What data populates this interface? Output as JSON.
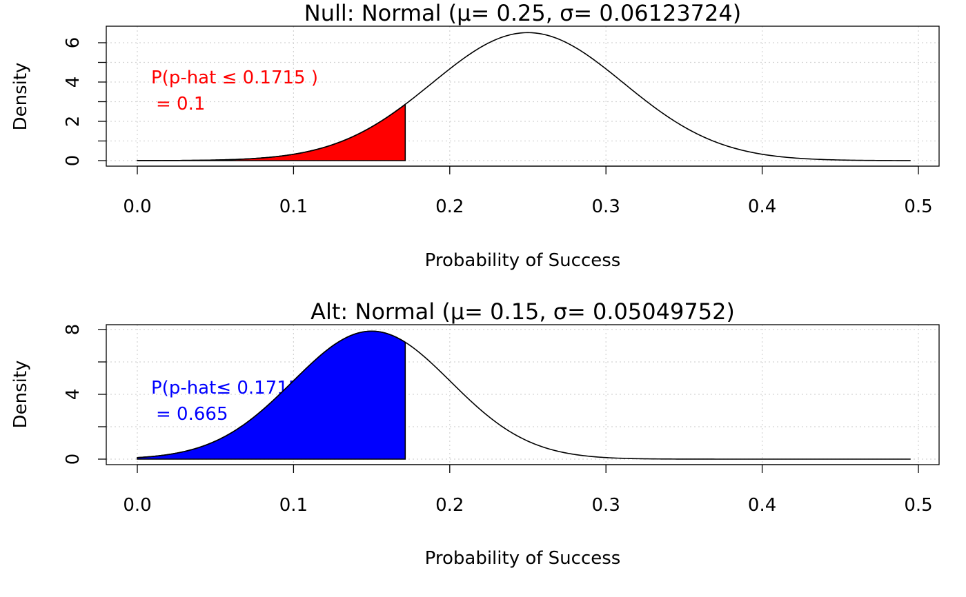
{
  "chart_data": [
    {
      "type": "area",
      "title": "Null: Normal (μ= 0.25, σ= 0.06123724)",
      "xlabel": "Probability of Success",
      "ylabel": "Density",
      "distribution": {
        "mean": 0.25,
        "sd": 0.06123724
      },
      "x_range": [
        0,
        0.495
      ],
      "shaded_upper": 0.1715,
      "shade_color": "#ff0000",
      "annotation": {
        "line1": "P(p-hat ≤ 0.1715 )",
        "line2": " = 0.1",
        "color": "#ff0000"
      },
      "xlim": [
        0,
        0.5
      ],
      "ylim": [
        0,
        6.5
      ],
      "xticks": [
        "0.0",
        "0.1",
        "0.2",
        "0.3",
        "0.4",
        "0.5"
      ],
      "yticks": [
        "0",
        "2",
        "4",
        "6"
      ],
      "grid": true
    },
    {
      "type": "area",
      "title": "Alt: Normal (μ= 0.15, σ= 0.05049752)",
      "xlabel": "Probability of Success",
      "ylabel": "Density",
      "distribution": {
        "mean": 0.15,
        "sd": 0.05049752
      },
      "x_range": [
        0,
        0.495
      ],
      "shaded_upper": 0.1715,
      "shade_color": "#0000ff",
      "annotation": {
        "line1": "P(p-hat≤ 0.1715 )",
        "line2": " = 0.665",
        "color": "#0000ff"
      },
      "xlim": [
        0,
        0.5
      ],
      "ylim": [
        0,
        7.9
      ],
      "xticks": [
        "0.0",
        "0.1",
        "0.2",
        "0.3",
        "0.4",
        "0.5"
      ],
      "yticks": [
        "0",
        "4",
        "8"
      ],
      "grid": true
    }
  ]
}
